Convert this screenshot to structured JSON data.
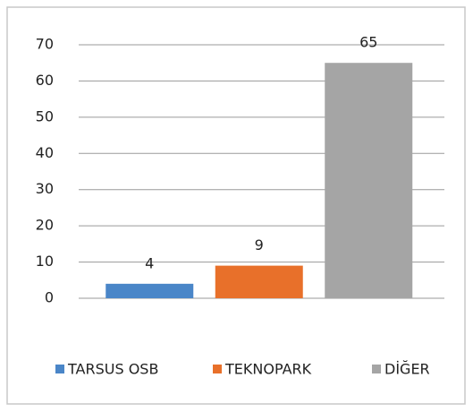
{
  "chart_data": {
    "type": "bar",
    "categories": [
      "TARSUS OSB",
      "TEKNOPARK",
      "DİĞER"
    ],
    "values": [
      4,
      9,
      65
    ],
    "colors": [
      "#4a86c8",
      "#e8702a",
      "#a5a5a5"
    ],
    "ylim": [
      0,
      70
    ],
    "yticks": [
      0,
      10,
      20,
      30,
      40,
      50,
      60,
      70
    ],
    "grid": true,
    "legend": "bottom"
  }
}
